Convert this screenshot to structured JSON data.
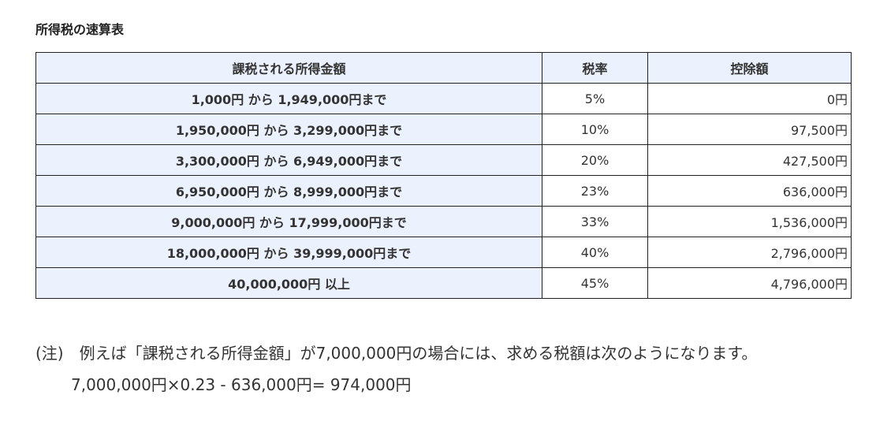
{
  "title": "所得税の速算表",
  "headers": [
    "課税される所得金額",
    "税率",
    "控除額"
  ],
  "rows": [
    {
      "range": "1,000円 から 1,949,000円まで",
      "rate": "5%",
      "deduction": "0円"
    },
    {
      "range": "1,950,000円 から 3,299,000円まで",
      "rate": "10%",
      "deduction": "97,500円"
    },
    {
      "range": "3,300,000円 から 6,949,000円まで",
      "rate": "20%",
      "deduction": "427,500円"
    },
    {
      "range": "6,950,000円 から 8,999,000円まで",
      "rate": "23%",
      "deduction": "636,000円"
    },
    {
      "range": "9,000,000円 から 17,999,000円まで",
      "rate": "33%",
      "deduction": "1,536,000円"
    },
    {
      "range": "18,000,000円 から 39,999,000円まで",
      "rate": "40%",
      "deduction": "2,796,000円"
    },
    {
      "range": "40,000,000円 以上",
      "rate": "45%",
      "deduction": "4,796,000円"
    }
  ],
  "note": "(注)　例えば「課税される所得金額」が7,000,000円の場合には、求める税額は次のようになります。",
  "calc": "7,000,000円×0.23 - 636,000円= 974,000円"
}
